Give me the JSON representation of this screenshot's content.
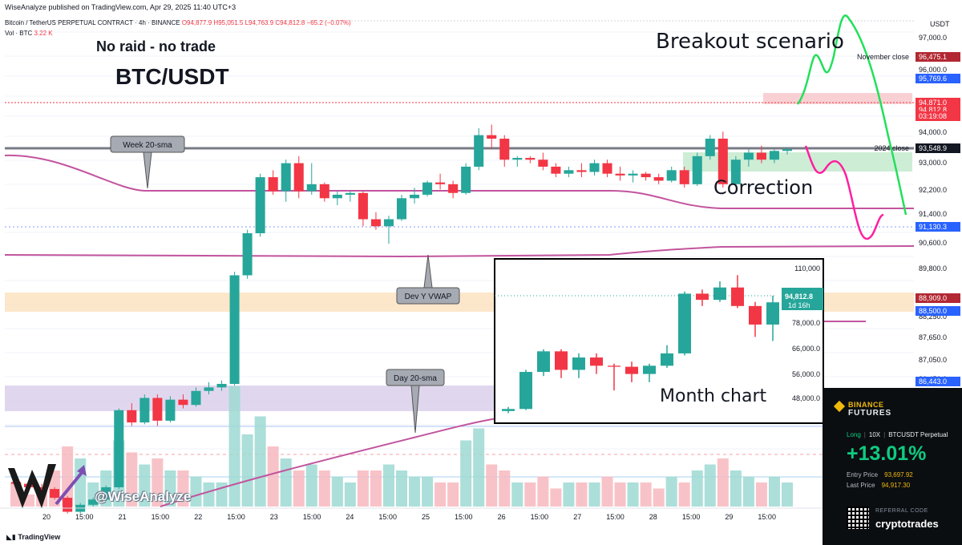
{
  "header": {
    "published_by": "WiseAnalyze published on TradingView.com, Apr 29, 2025 11:40 UTC+3",
    "symbol_line": "Bitcoin / TetherUS PERPETUAL CONTRACT · 4h · BINANCE",
    "ohlc": {
      "o": "O94,877.9",
      "h": "H95,051.5",
      "l": "L94,763.9",
      "c": "C94,812.8",
      "chg": "−65.2 (−0.07%)"
    },
    "volume_label": "Vol · BTC",
    "volume_value": "3.22 K"
  },
  "titles": {
    "subtitle": "No raid - no trade",
    "pair": "BTC/USDT"
  },
  "annotations": {
    "breakout": "Breakout scenario",
    "correction": "Correction",
    "month_chart": "Month chart",
    "week_sma": "Week 20-sma",
    "dev_vwap": "Dev Y VWAP",
    "day_sma": "Day 20-sma",
    "november_close": "November close",
    "close_2024": "2024 close",
    "handle": "@WiseAnalyze"
  },
  "colors": {
    "up": "#26a69a",
    "down": "#f23645",
    "sma": "#c2549e",
    "scenario_green": "#21e05a",
    "scenario_pink": "#ff1fa0",
    "orange_zone": "#fbd7a8",
    "purple_zone": "#d8cdeb"
  },
  "chart_data": {
    "type": "candlestick",
    "interval": "4h",
    "price_axis": {
      "currency": "USDT",
      "min": 84500,
      "max": 98500,
      "ticks": [
        "97,000.0",
        "96,000.0",
        "94,000.0",
        "93,000.0",
        "92,200.0",
        "91,400.0",
        "90,600.0",
        "89,800.0",
        "88,250.0",
        "87,650.0",
        "87,050.0",
        "86,450.0"
      ]
    },
    "price_tags": [
      {
        "label": "96,475.1",
        "value": 96475.1,
        "color": "#b22833"
      },
      {
        "label": "95,769.6",
        "value": 95769.6,
        "color": "#2962ff"
      },
      {
        "label": "94,871.0",
        "value": 94871.0,
        "color": "#f23645"
      },
      {
        "label": "94,812.8",
        "value": 94812.8,
        "color": "#f23645"
      },
      {
        "label": "03:19:08",
        "value": 94600,
        "color": "#f23645"
      },
      {
        "label": "93,548.9",
        "value": 93548.9,
        "color": "#131722"
      },
      {
        "label": "91,130.3",
        "value": 91130.3,
        "color": "#2962ff"
      },
      {
        "label": "88,909.0",
        "value": 88909.0,
        "color": "#b22833"
      },
      {
        "label": "88,500.0",
        "value": 88500.0,
        "color": "#2962ff"
      },
      {
        "label": "86,443.0",
        "value": 86443.0,
        "color": "#2962ff"
      }
    ],
    "time_axis": [
      "20",
      "15:00",
      "21",
      "15:00",
      "22",
      "15:00",
      "23",
      "15:00",
      "24",
      "15:00",
      "25",
      "15:00",
      "26",
      "15:00",
      "27",
      "15:00",
      "28",
      "15:00",
      "29",
      "15:00"
    ],
    "candles": [
      [
        85200,
        85300,
        85050,
        85150
      ],
      [
        85150,
        85250,
        84950,
        85050
      ],
      [
        85050,
        85150,
        84900,
        85000
      ],
      [
        85000,
        85050,
        84700,
        84750
      ],
      [
        84750,
        84800,
        84300,
        84350
      ],
      [
        84350,
        84600,
        84300,
        84550
      ],
      [
        84550,
        84750,
        84500,
        84700
      ],
      [
        84700,
        85100,
        84650,
        85050
      ],
      [
        85050,
        87300,
        85000,
        87250
      ],
      [
        87250,
        87450,
        86800,
        86900
      ],
      [
        86900,
        87700,
        86850,
        87600
      ],
      [
        87600,
        87700,
        86800,
        86950
      ],
      [
        86950,
        87650,
        86900,
        87550
      ],
      [
        87550,
        87700,
        87300,
        87400
      ],
      [
        87400,
        87900,
        87350,
        87800
      ],
      [
        87800,
        88050,
        87700,
        87900
      ],
      [
        87900,
        88100,
        87800,
        88000
      ],
      [
        88000,
        91200,
        87950,
        91100
      ],
      [
        91100,
        92400,
        91000,
        92300
      ],
      [
        92300,
        94000,
        92200,
        93900
      ],
      [
        93900,
        94100,
        93400,
        93500
      ],
      [
        93500,
        94400,
        93200,
        94300
      ],
      [
        94300,
        94500,
        93300,
        93500
      ],
      [
        93500,
        94300,
        93400,
        93700
      ],
      [
        93700,
        93750,
        93200,
        93300
      ],
      [
        93300,
        93500,
        93100,
        93400
      ],
      [
        93400,
        93500,
        93200,
        93450
      ],
      [
        93450,
        93500,
        92500,
        92700
      ],
      [
        92700,
        92900,
        92400,
        92500
      ],
      [
        92500,
        92800,
        92000,
        92700
      ],
      [
        92700,
        93400,
        92650,
        93300
      ],
      [
        93300,
        93600,
        93150,
        93400
      ],
      [
        93400,
        93800,
        93350,
        93750
      ],
      [
        93750,
        94000,
        93550,
        93700
      ],
      [
        93700,
        93800,
        93300,
        93450
      ],
      [
        93450,
        94300,
        93400,
        94200
      ],
      [
        94200,
        95300,
        94100,
        95100
      ],
      [
        95100,
        95400,
        94700,
        95000
      ],
      [
        95000,
        95100,
        94200,
        94400
      ],
      [
        94400,
        94500,
        94200,
        94450
      ],
      [
        94450,
        94500,
        94300,
        94400
      ],
      [
        94400,
        94600,
        94100,
        94200
      ],
      [
        94200,
        94300,
        93900,
        94000
      ],
      [
        94000,
        94200,
        93900,
        94100
      ],
      [
        94100,
        94300,
        93900,
        94050
      ],
      [
        94050,
        94400,
        93950,
        94300
      ],
      [
        94300,
        94400,
        93900,
        94000
      ],
      [
        94000,
        94200,
        93800,
        93950
      ],
      [
        93950,
        94100,
        93750,
        94000
      ],
      [
        94000,
        94050,
        93800,
        93900
      ],
      [
        93900,
        94000,
        93700,
        93800
      ],
      [
        93800,
        94200,
        93750,
        94100
      ],
      [
        94100,
        94200,
        93600,
        93700
      ],
      [
        93700,
        94600,
        93650,
        94500
      ],
      [
        94500,
        95100,
        94400,
        95000
      ],
      [
        95000,
        95200,
        93600,
        93700
      ],
      [
        93700,
        94500,
        93650,
        94400
      ],
      [
        94400,
        94700,
        94200,
        94600
      ],
      [
        94600,
        94800,
        94300,
        94400
      ],
      [
        94400,
        94700,
        94300,
        94650
      ],
      [
        94650,
        94750,
        94550,
        94700
      ]
    ],
    "volumes": [
      0.2,
      0.1,
      0.15,
      0.3,
      0.5,
      0.4,
      0.2,
      0.3,
      0.55,
      0.45,
      0.35,
      0.4,
      0.3,
      0.3,
      0.25,
      0.2,
      0.2,
      1.0,
      0.6,
      0.75,
      0.5,
      0.4,
      0.3,
      0.35,
      0.3,
      0.25,
      0.2,
      0.3,
      0.3,
      0.35,
      0.3,
      0.25,
      0.25,
      0.2,
      0.2,
      0.55,
      0.65,
      0.35,
      0.3,
      0.2,
      0.2,
      0.25,
      0.15,
      0.2,
      0.2,
      0.2,
      0.25,
      0.2,
      0.2,
      0.2,
      0.15,
      0.25,
      0.2,
      0.3,
      0.35,
      0.4,
      0.3,
      0.25,
      0.2,
      0.25,
      0.2
    ],
    "inset_month_chart": {
      "type": "candlestick",
      "ticks": [
        "110,000",
        "78,000.0",
        "66,000.0",
        "56,000.0",
        "48,000.0"
      ],
      "current_tag": "94,812.8",
      "countdown": "1d 16h",
      "candles": [
        [
          42000,
          44000,
          41000,
          43000
        ],
        [
          43000,
          62000,
          42500,
          61000
        ],
        [
          61000,
          72000,
          59000,
          71000
        ],
        [
          71000,
          72000,
          58000,
          62000
        ],
        [
          62000,
          70000,
          58000,
          68000
        ],
        [
          68000,
          70000,
          60000,
          64000
        ],
        [
          64000,
          65000,
          52000,
          63500
        ],
        [
          63500,
          66000,
          56000,
          60000
        ],
        [
          60000,
          65000,
          56000,
          64000
        ],
        [
          64000,
          74000,
          63000,
          70000
        ],
        [
          70000,
          100000,
          69000,
          99000
        ],
        [
          99000,
          101000,
          93000,
          96000
        ],
        [
          96000,
          105000,
          95000,
          102000
        ],
        [
          102000,
          108000,
          92000,
          93000
        ],
        [
          93000,
          95000,
          78000,
          84000
        ],
        [
          84000,
          98000,
          76000,
          94800
        ]
      ]
    }
  },
  "binance_panel": {
    "brand_top": "BINANCE",
    "brand_bottom": "FUTURES",
    "side": "Long",
    "leverage": "10X",
    "instrument": "BTCUSDT Perpetual",
    "pnl": "+13.01%",
    "entry_label": "Entry Price",
    "entry_value": "93,697.92",
    "last_label": "Last Price",
    "last_value": "94,917.30",
    "referral_label": "REFERRAL CODE",
    "referral_code": "cryptotrades"
  },
  "footer": {
    "brand": "TradingView"
  }
}
